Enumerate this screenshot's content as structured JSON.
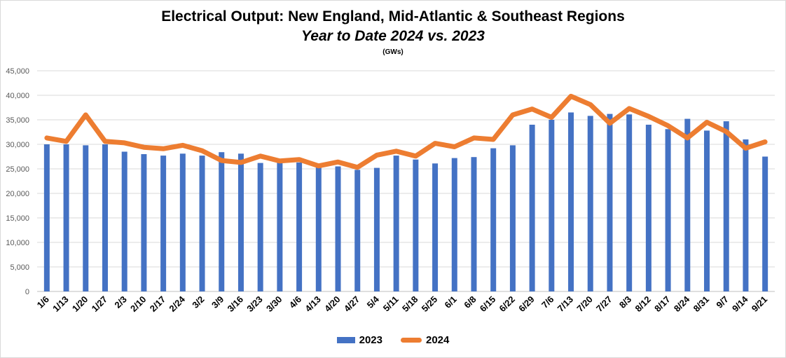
{
  "chart_data": {
    "type": "bar",
    "title": "Electrical Output:  New England, Mid-Atlantic & Southeast Regions",
    "subtitle": "Year to Date 2024 vs. 2023",
    "unit_label": "(GWs)",
    "xlabel": "",
    "ylabel": "",
    "ylim": [
      0,
      45000
    ],
    "yticks": [
      "0",
      "5,000",
      "10,000",
      "15,000",
      "20,000",
      "25,000",
      "30,000",
      "35,000",
      "40,000",
      "45,000"
    ],
    "grid": true,
    "legend_position": "bottom",
    "categories": [
      "1/6",
      "1/13",
      "1/20",
      "1/27",
      "2/3",
      "2/10",
      "2/17",
      "2/24",
      "3/2",
      "3/9",
      "3/16",
      "3/23",
      "3/30",
      "4/6",
      "4/13",
      "4/20",
      "4/27",
      "5/4",
      "5/11",
      "5/18",
      "5/25",
      "6/1",
      "6/8",
      "6/15",
      "6/22",
      "6/29",
      "7/6",
      "7/13",
      "7/20",
      "7/27",
      "8/3",
      "8/12",
      "8/17",
      "8/24",
      "8/31",
      "9/7",
      "9/14",
      "9/21"
    ],
    "series": [
      {
        "name": "2023",
        "type": "bar",
        "color": "#4472c4",
        "values": [
          30000,
          30000,
          29800,
          30000,
          28500,
          28000,
          27700,
          28100,
          27700,
          28400,
          28100,
          26200,
          26400,
          26300,
          25500,
          25500,
          24800,
          25200,
          27700,
          26900,
          26100,
          27200,
          27400,
          29200,
          29800,
          34000,
          35000,
          36500,
          35800,
          36200,
          36100,
          34000,
          33100,
          35200,
          32800,
          34700,
          31000,
          27500
        ]
      },
      {
        "name": "2024",
        "type": "line",
        "color": "#ed7d31",
        "values": [
          31300,
          30600,
          36000,
          30600,
          30300,
          29400,
          29100,
          29800,
          28700,
          26700,
          26300,
          27600,
          26600,
          26900,
          25600,
          26400,
          25300,
          27800,
          28600,
          27600,
          30200,
          29500,
          31300,
          31000,
          36000,
          37200,
          35500,
          39800,
          38100,
          34300,
          37300,
          35700,
          33800,
          31300,
          34500,
          32600,
          29200,
          30500
        ]
      }
    ]
  }
}
